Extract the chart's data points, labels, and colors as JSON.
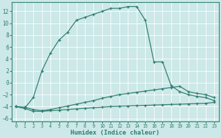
{
  "background_color": "#cce8e8",
  "grid_color": "#ffffff",
  "line_color": "#2e7d70",
  "xlabel": "Humidex (Indice chaleur)",
  "xlim": [
    -0.5,
    23.5
  ],
  "ylim": [
    -6.5,
    13.5
  ],
  "yticks": [
    -6,
    -4,
    -2,
    0,
    2,
    4,
    6,
    8,
    10,
    12
  ],
  "xticks": [
    0,
    1,
    2,
    3,
    4,
    5,
    6,
    7,
    8,
    9,
    10,
    11,
    12,
    13,
    14,
    15,
    16,
    17,
    18,
    19,
    20,
    21,
    22,
    23
  ],
  "curve1_x": [
    0,
    1,
    2,
    3,
    4,
    5,
    6,
    7,
    8,
    9,
    10,
    11,
    12,
    13,
    14,
    15,
    16,
    17,
    18,
    19,
    20,
    21,
    22,
    23
  ],
  "curve1_y": [
    -4.0,
    -4.3,
    -4.8,
    -4.8,
    -4.7,
    -4.6,
    -4.5,
    -4.4,
    -4.3,
    -4.2,
    -4.1,
    -4.0,
    -3.95,
    -3.9,
    -3.85,
    -3.8,
    -3.75,
    -3.7,
    -3.65,
    -3.6,
    -3.55,
    -3.5,
    -3.45,
    -3.3
  ],
  "curve2_x": [
    0,
    1,
    2,
    3,
    4,
    5,
    6,
    7,
    8,
    9,
    10,
    11,
    12,
    13,
    14,
    15,
    16,
    17,
    18,
    19,
    20,
    21,
    22,
    23
  ],
  "curve2_y": [
    -4.0,
    -4.1,
    -4.5,
    -4.7,
    -4.5,
    -4.2,
    -3.9,
    -3.6,
    -3.3,
    -3.0,
    -2.6,
    -2.3,
    -2.0,
    -1.8,
    -1.6,
    -1.4,
    -1.2,
    -1.0,
    -0.8,
    -0.6,
    -1.5,
    -1.8,
    -2.0,
    -2.5
  ],
  "curve3_x": [
    0,
    1,
    2,
    3,
    4,
    5,
    6,
    7,
    8,
    9,
    10,
    11,
    12,
    13,
    14,
    15,
    16,
    17,
    18,
    19,
    20,
    21,
    22,
    23
  ],
  "curve3_y": [
    -4.0,
    -4.3,
    -2.5,
    2.0,
    5.0,
    7.2,
    8.5,
    10.5,
    11.0,
    11.5,
    12.0,
    12.5,
    12.5,
    12.8,
    12.8,
    10.5,
    3.5,
    3.5,
    -0.5,
    -1.5,
    -2.0,
    -2.3,
    -2.5,
    -3.0
  ]
}
